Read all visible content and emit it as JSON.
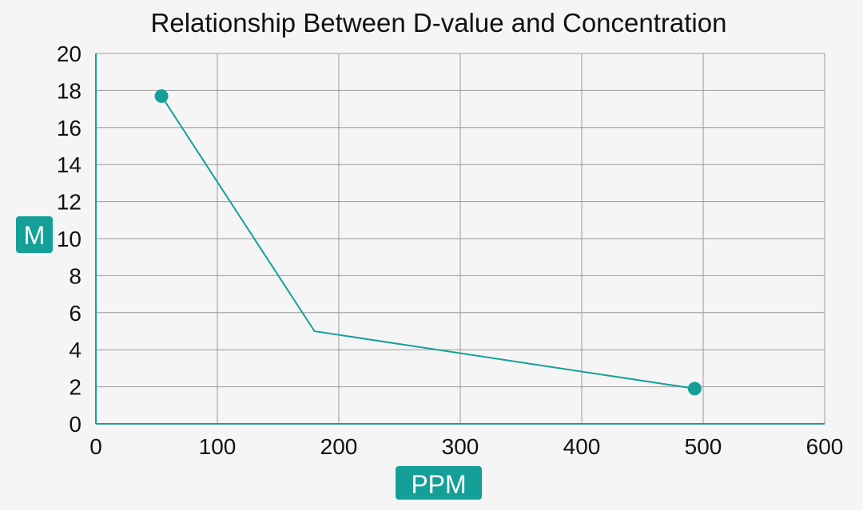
{
  "chart_data": {
    "type": "line",
    "title": "Relationship Between D-value and Concentration",
    "xlabel": "PPM",
    "ylabel": "M",
    "xlim": [
      0,
      600
    ],
    "ylim": [
      0,
      20
    ],
    "x_ticks": [
      0,
      100,
      200,
      300,
      400,
      500,
      600
    ],
    "y_ticks": [
      0,
      2,
      4,
      6,
      8,
      10,
      12,
      14,
      16,
      18,
      20
    ],
    "grid": true,
    "series": [
      {
        "name": "D-value",
        "points": [
          {
            "x": 54,
            "y": 17.7,
            "marker": true
          },
          {
            "x": 180,
            "y": 5.0,
            "marker": false
          },
          {
            "x": 493,
            "y": 1.9,
            "marker": true
          }
        ]
      }
    ]
  },
  "colors": {
    "accent": "#14a098",
    "grid": "#9a9a9a",
    "background": "#f5f5f5",
    "text": "#111111"
  }
}
